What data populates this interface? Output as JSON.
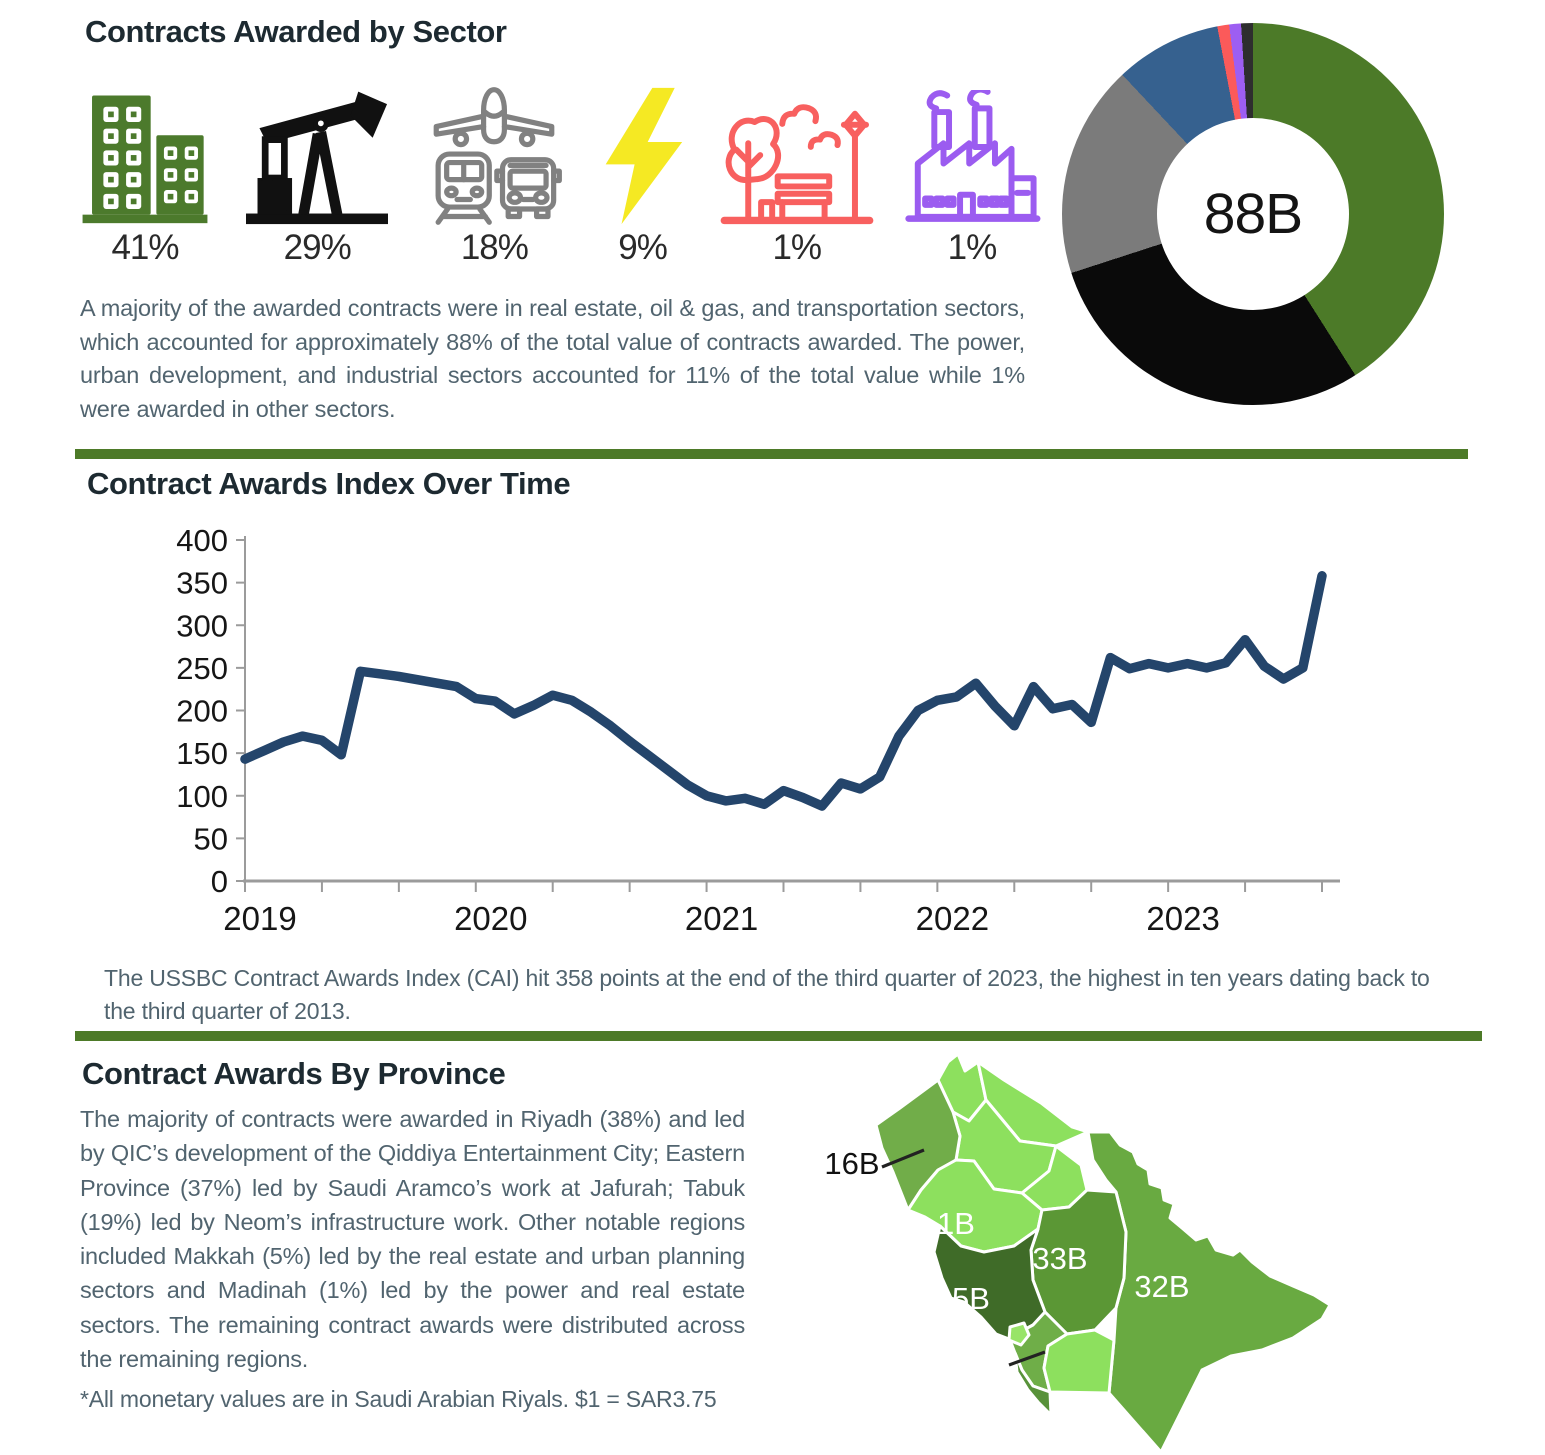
{
  "page": {
    "accent_green": "#4d7a28",
    "heading_color": "#1d2a31",
    "body_text_color": "#51646f"
  },
  "sectors_section": {
    "title": "Contracts Awarded by Sector",
    "items": [
      {
        "label": "real-estate",
        "pct": "41%"
      },
      {
        "label": "oil-gas",
        "pct": "29%"
      },
      {
        "label": "transportation",
        "pct": "18%"
      },
      {
        "label": "power",
        "pct": "9%"
      },
      {
        "label": "urban-development",
        "pct": "1%"
      },
      {
        "label": "industrial",
        "pct": "1%"
      }
    ],
    "donut_center_label": "88B",
    "paragraph": "A majority of the awarded contracts were in real estate, oil & gas, and transportation sectors, which accounted for approximately 88% of the total value of contracts awarded. The power, urban development, and industrial sectors accounted for 11% of the total value while 1% were awarded in other sectors."
  },
  "cai_section": {
    "title": "Contract Awards Index Over Time",
    "caption": "The USSBC Contract Awards Index (CAI) hit 358 points at the end of the third quarter of 2023, the highest in ten years dating back to the third quarter of 2013."
  },
  "province_section": {
    "title": "Contract Awards By Province",
    "paragraph": "The majority of contracts were awarded in Riyadh (38%) and led by QIC’s development of the Qiddiya Entertainment City; Eastern Province (37%) led by Saudi Aramco’s work at Jafurah; Tabuk (19%) led by Neom’s infrastructure work. Other notable regions included Makkah (5%) led by the real estate and urban planning sectors and Madinah (1%) led by the power and real estate sectors. The remaining contract awards were distributed across the remaining regions.",
    "footnote": "*All monetary values are in Saudi Arabian Riyals. $1 = SAR3.75",
    "map_labels": {
      "tabuk": "16B",
      "madinah": "1B",
      "riyadh": "33B",
      "eastern_province": "32B",
      "makkah": "5B"
    }
  },
  "chart_data": [
    {
      "type": "pie",
      "subtype": "donut",
      "title": "Contracts Awarded by Sector",
      "center_label": "88B",
      "labels": [
        "Real Estate",
        "Oil & Gas",
        "Transportation",
        "Power",
        "Urban Development",
        "Industrial",
        "Other"
      ],
      "values": [
        41,
        29,
        18,
        9,
        1,
        1,
        1
      ],
      "colors": [
        "#4c7a28",
        "#0a0a0a",
        "#7b7b7b",
        "#36618f",
        "#fb5a5a",
        "#9d5ef2",
        "#2e2e2e"
      ],
      "start_angle_deg": 0,
      "direction": "clockwise"
    },
    {
      "type": "line",
      "title": "Contract Awards Index Over Time",
      "frequency": "monthly",
      "x_start": "2019-01",
      "x_end": "2023-09",
      "x_tick_labels": [
        "2019",
        "2020",
        "2021",
        "2022",
        "2023"
      ],
      "ylim": [
        0,
        400
      ],
      "y_ticks": [
        0,
        50,
        100,
        150,
        200,
        250,
        300,
        350,
        400
      ],
      "line_color": "#24456b",
      "values": [
        143,
        153,
        163,
        170,
        165,
        148,
        246,
        243,
        240,
        236,
        232,
        228,
        214,
        211,
        196,
        206,
        218,
        212,
        198,
        182,
        164,
        147,
        130,
        113,
        100,
        94,
        97,
        90,
        106,
        98,
        88,
        115,
        108,
        122,
        170,
        200,
        212,
        216,
        232,
        205,
        182,
        228,
        202,
        207,
        186,
        262,
        249,
        255,
        250,
        255,
        250,
        256,
        283,
        252,
        237,
        250,
        358
      ]
    },
    {
      "type": "heatmap",
      "subtype": "choropleth-map",
      "title": "Contract Awards By Province",
      "regions": [
        {
          "name": "Riyadh",
          "value_label": "33B",
          "share": "38%"
        },
        {
          "name": "Eastern Province",
          "value_label": "32B",
          "share": "37%"
        },
        {
          "name": "Tabuk",
          "value_label": "16B",
          "share": "19%"
        },
        {
          "name": "Makkah",
          "value_label": "5B",
          "share": "5%"
        },
        {
          "name": "Madinah",
          "value_label": "1B",
          "share": "1%"
        }
      ]
    }
  ]
}
